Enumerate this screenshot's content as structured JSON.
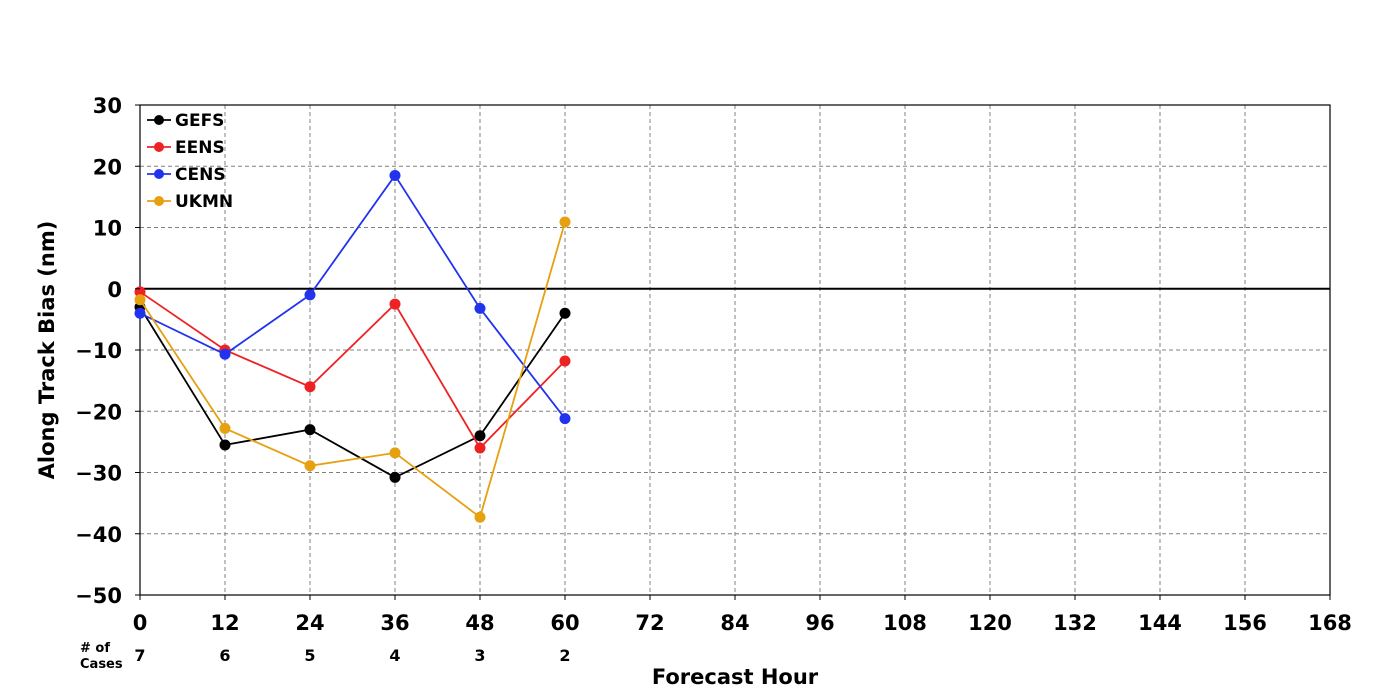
{
  "chart_data": {
    "type": "line",
    "title": "",
    "xlabel": "Forecast Hour",
    "ylabel": "Along Track Bias (nm)",
    "xlim": [
      0,
      168
    ],
    "ylim": [
      -50,
      30
    ],
    "x_ticks": [
      0,
      12,
      24,
      36,
      48,
      60,
      72,
      84,
      96,
      108,
      120,
      132,
      144,
      156,
      168
    ],
    "y_ticks": [
      30,
      20,
      10,
      0,
      -10,
      -20,
      -30,
      -40,
      -50
    ],
    "y_tick_labels": [
      "30",
      "20",
      "10",
      "0",
      "−10",
      "−20",
      "−30",
      "−40",
      "−50"
    ],
    "grid": true,
    "legend_position": "top-left",
    "cases_label": [
      "# of",
      "Cases"
    ],
    "cases": [
      {
        "x": 0,
        "count": "7"
      },
      {
        "x": 12,
        "count": "6"
      },
      {
        "x": 24,
        "count": "5"
      },
      {
        "x": 36,
        "count": "4"
      },
      {
        "x": 48,
        "count": "3"
      },
      {
        "x": 60,
        "count": "2"
      }
    ],
    "series": [
      {
        "name": "GEFS",
        "color": "#000000",
        "x": [
          0,
          12,
          24,
          36,
          48,
          60
        ],
        "values": [
          -3.0,
          -25.5,
          -23.0,
          -30.8,
          -24.0,
          -4.0
        ]
      },
      {
        "name": "EENS",
        "color": "#ee2222",
        "x": [
          0,
          12,
          24,
          36,
          48,
          60
        ],
        "values": [
          -0.5,
          -10.0,
          -16.0,
          -2.5,
          -26.0,
          -11.8
        ]
      },
      {
        "name": "CENS",
        "color": "#2233ee",
        "x": [
          0,
          12,
          24,
          36,
          48,
          60
        ],
        "values": [
          -4.0,
          -10.7,
          -1.0,
          18.5,
          -3.2,
          -21.2
        ]
      },
      {
        "name": "UKMN",
        "color": "#e6a010",
        "x": [
          0,
          12,
          24,
          36,
          48,
          60
        ],
        "values": [
          -1.8,
          -22.8,
          -28.9,
          -26.8,
          -37.3,
          10.9
        ]
      }
    ]
  }
}
